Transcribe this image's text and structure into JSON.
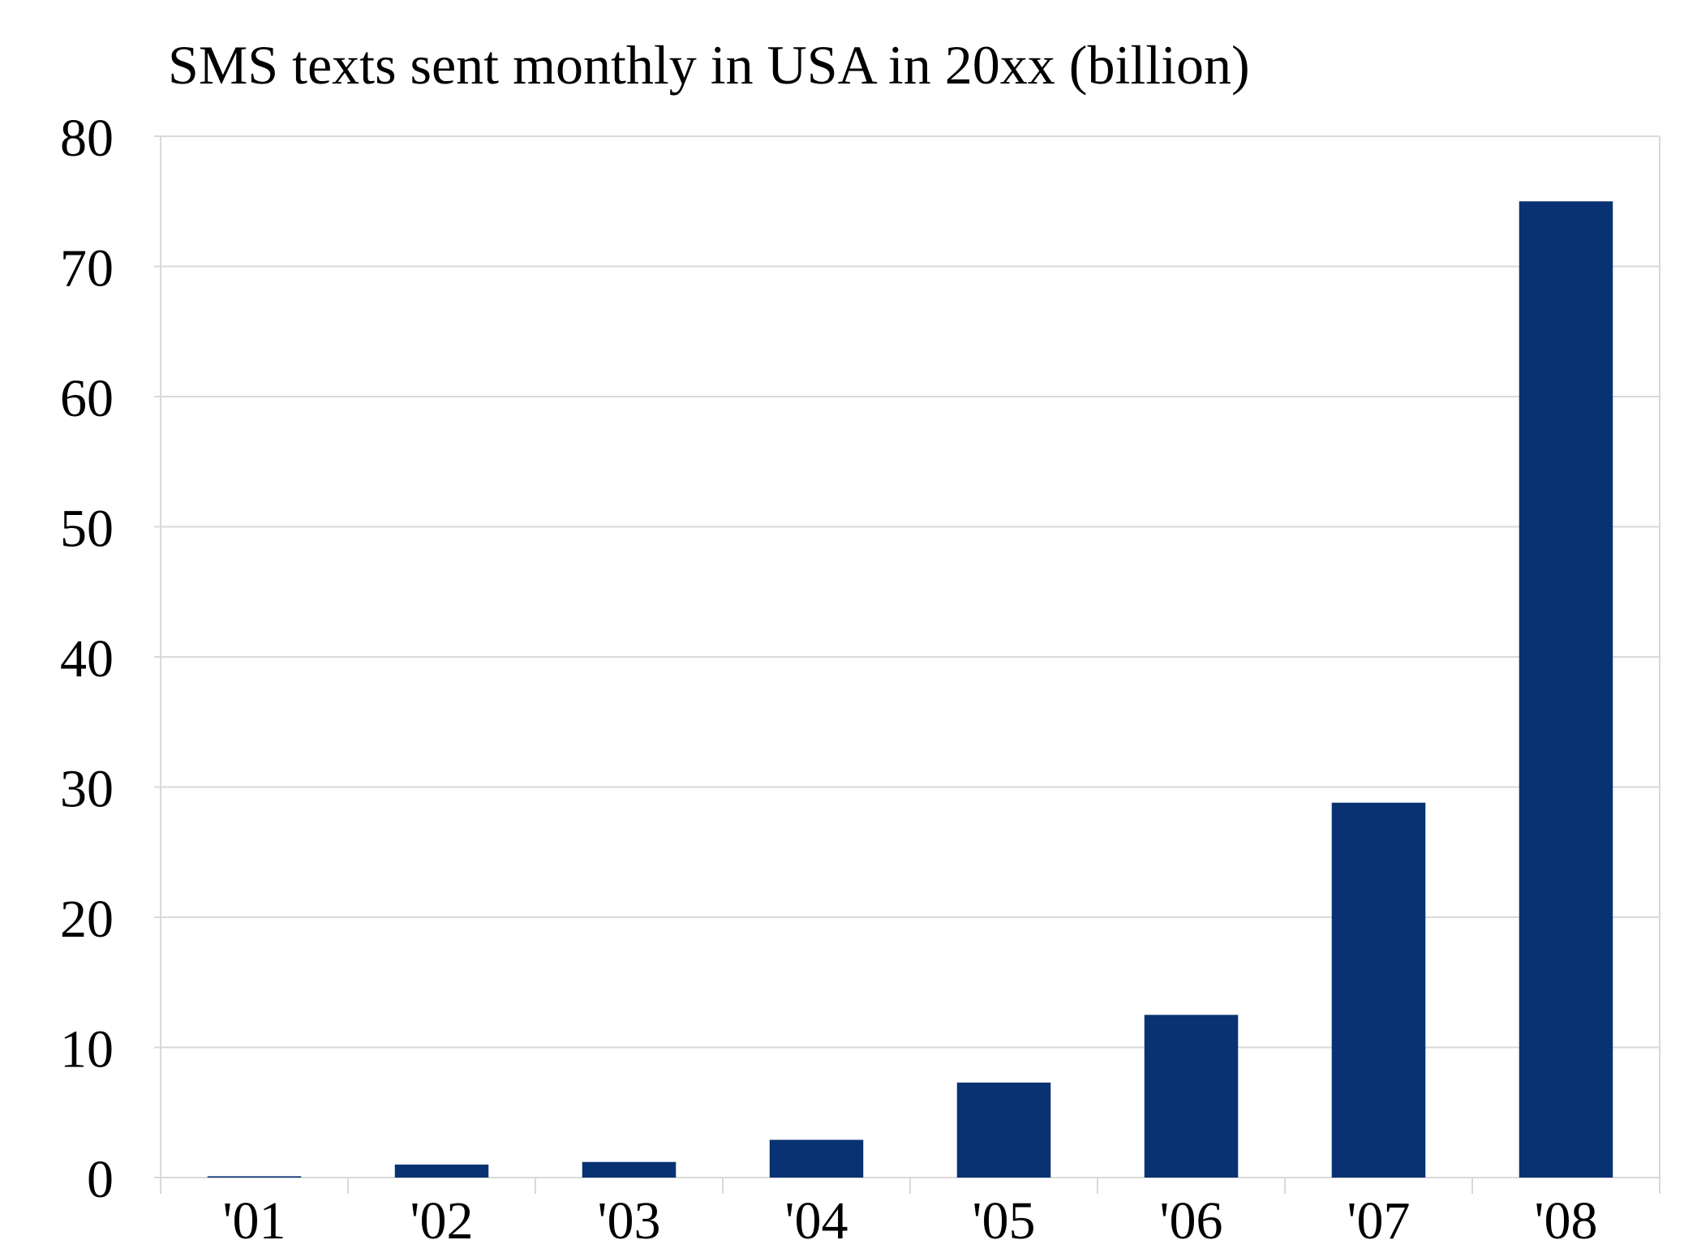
{
  "chart_data": {
    "type": "bar",
    "title": "SMS texts sent monthly in USA in 20xx (billion)",
    "xlabel": "",
    "ylabel": "",
    "categories": [
      "'01",
      "'02",
      "'03",
      "'04",
      "'05",
      "'06",
      "'07",
      "'08"
    ],
    "values": [
      0.1,
      1.0,
      1.2,
      2.9,
      7.3,
      12.5,
      28.8,
      75.0
    ],
    "ylim": [
      0,
      80
    ],
    "yticks": [
      "0",
      "10",
      "20",
      "30",
      "40",
      "50",
      "60",
      "70",
      "80"
    ],
    "grid": true,
    "legend": "none",
    "bar_color": "#083272",
    "grid_color": "#d9d9d9"
  }
}
